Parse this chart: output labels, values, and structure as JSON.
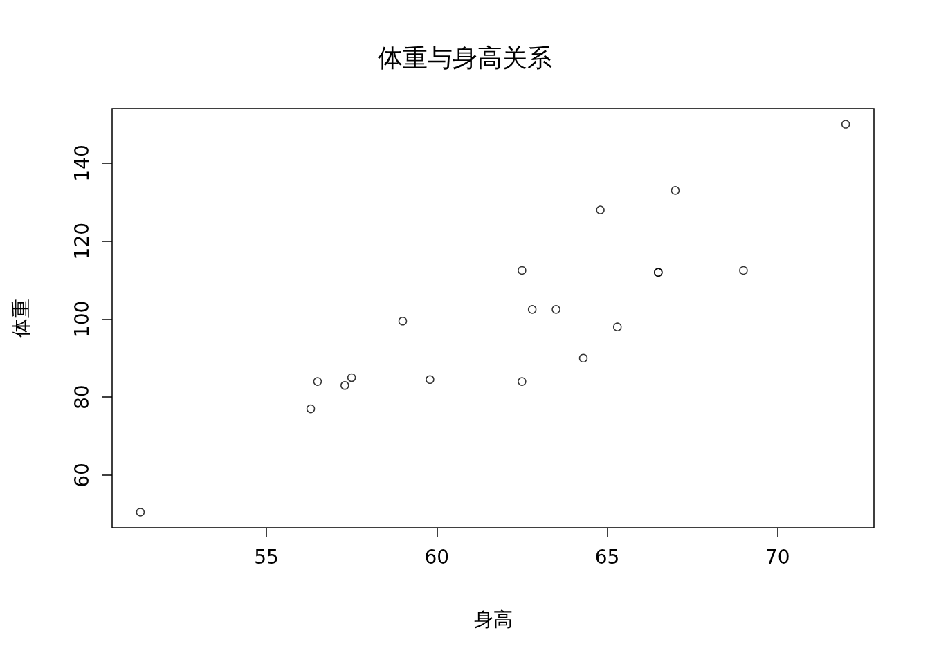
{
  "chart_data": {
    "type": "scatter",
    "title": "体重与身高关系",
    "xlabel": "身高",
    "ylabel": "体重",
    "x": [
      69.0,
      56.5,
      65.3,
      62.8,
      63.5,
      57.3,
      59.8,
      62.5,
      62.5,
      59.0,
      51.3,
      64.3,
      56.3,
      66.5,
      72.0,
      64.8,
      67.0,
      57.5,
      66.5
    ],
    "values": [
      112.5,
      84.0,
      98.0,
      102.5,
      102.5,
      83.0,
      84.5,
      112.5,
      84.0,
      99.5,
      50.5,
      90.0,
      77.0,
      112.0,
      150.0,
      128.0,
      133.0,
      85.0,
      112.0
    ],
    "color": "#000000",
    "marker": "circle",
    "grid": false,
    "xlim": [
      50.47,
      72.83
    ],
    "xticks": [
      55,
      60,
      65,
      70
    ],
    "ylim": [
      46.5,
      154
    ],
    "yticks": [
      60,
      80,
      100,
      120,
      140
    ]
  }
}
